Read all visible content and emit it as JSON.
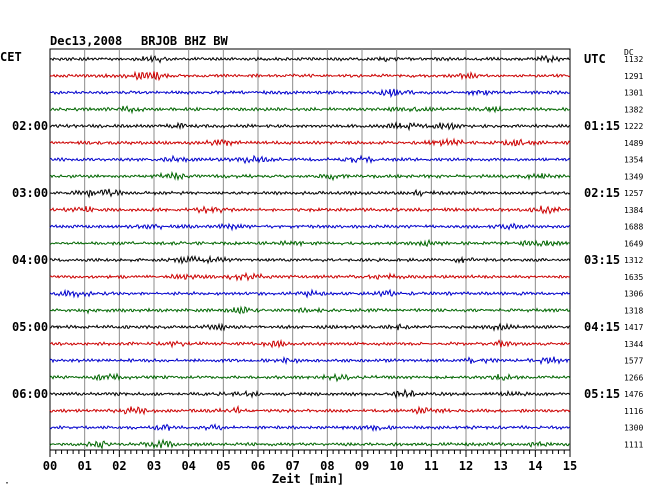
{
  "header": {
    "date": "Dec13,2008",
    "station": "BRJOB BHZ BW"
  },
  "left_zone_label": "CET",
  "right_zone_label": "UTC",
  "dc_header": "DC",
  "footer_mark": "·",
  "chart_data": {
    "type": "line",
    "title": "Dec13,2008   BRJOB BHZ BW",
    "xlabel": "Zeit [min]",
    "ylabel": "",
    "x_ticks": [
      "00",
      "01",
      "02",
      "03",
      "04",
      "05",
      "06",
      "07",
      "08",
      "09",
      "10",
      "11",
      "12",
      "13",
      "14",
      "15"
    ],
    "xlim": [
      0,
      15
    ],
    "grid": true,
    "trace_colors": [
      "#000000",
      "#cc0000",
      "#0000cc",
      "#006600"
    ],
    "left_hour_labels": [
      {
        "row": 4,
        "label": "02:00"
      },
      {
        "row": 8,
        "label": "03:00"
      },
      {
        "row": 12,
        "label": "04:00"
      },
      {
        "row": 16,
        "label": "05:00"
      },
      {
        "row": 20,
        "label": "06:00"
      }
    ],
    "right_hour_labels": [
      {
        "row": 0,
        "label": "UTC"
      },
      {
        "row": 4,
        "label": "01:15"
      },
      {
        "row": 8,
        "label": "02:15"
      },
      {
        "row": 12,
        "label": "03:15"
      },
      {
        "row": 16,
        "label": "04:15"
      },
      {
        "row": 20,
        "label": "05:15"
      }
    ],
    "dc_values": [
      1132,
      1291,
      1301,
      1382,
      1222,
      1489,
      1354,
      1349,
      1257,
      1384,
      1688,
      1649,
      1312,
      1635,
      1306,
      1318,
      1417,
      1344,
      1577,
      1266,
      1476,
      1116,
      1300,
      1111
    ]
  }
}
